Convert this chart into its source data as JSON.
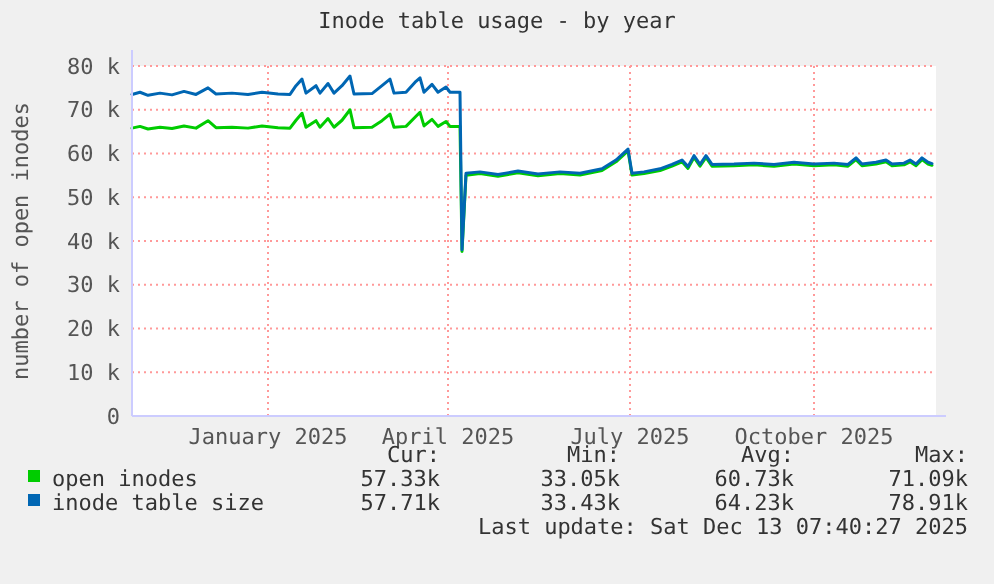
{
  "chart_data": {
    "type": "line",
    "title": "Inode table usage - by year",
    "ylabel": "number of open inodes",
    "x": [
      "2024-11-08",
      "2024-11-12",
      "2024-11-16",
      "2024-11-22",
      "2024-11-28",
      "2024-12-04",
      "2024-12-10",
      "2024-12-16",
      "2024-12-20",
      "2024-12-28",
      "2025-01-05",
      "2025-01-12",
      "2025-01-20",
      "2025-01-26",
      "2025-01-29",
      "2025-02-01",
      "2025-02-03",
      "2025-02-08",
      "2025-02-10",
      "2025-02-14",
      "2025-02-17",
      "2025-02-21",
      "2025-02-25",
      "2025-02-27",
      "2025-03-08",
      "2025-03-13",
      "2025-03-17",
      "2025-03-19",
      "2025-03-25",
      "2025-03-30",
      "2025-04-01",
      "2025-04-03",
      "2025-04-07",
      "2025-04-10",
      "2025-04-14",
      "2025-04-16",
      "2025-04-21",
      "2025-04-22",
      "2025-04-24",
      "2025-05-01",
      "2025-05-10",
      "2025-05-20",
      "2025-05-30",
      "2025-06-10",
      "2025-06-20",
      "2025-07-01",
      "2025-07-08",
      "2025-07-14",
      "2025-07-16",
      "2025-07-22",
      "2025-07-30",
      "2025-08-05",
      "2025-08-10",
      "2025-08-13",
      "2025-08-16",
      "2025-08-19",
      "2025-08-22",
      "2025-08-25",
      "2025-09-05",
      "2025-09-15",
      "2025-09-25",
      "2025-10-05",
      "2025-10-15",
      "2025-10-25",
      "2025-11-01",
      "2025-11-05",
      "2025-11-08",
      "2025-11-15",
      "2025-11-20",
      "2025-11-23",
      "2025-11-29",
      "2025-12-02",
      "2025-12-05",
      "2025-12-08",
      "2025-12-11",
      "2025-12-13"
    ],
    "series": [
      {
        "name": "open inodes",
        "color": "#00cc00",
        "values": [
          65.8,
          66.2,
          65.6,
          66.0,
          65.7,
          66.3,
          65.8,
          67.5,
          65.9,
          66.0,
          65.8,
          66.3,
          65.9,
          65.8,
          67.6,
          69.2,
          66.0,
          67.5,
          66.0,
          68.0,
          66.0,
          67.6,
          70.0,
          65.9,
          66.0,
          67.5,
          69.0,
          66.0,
          66.2,
          68.5,
          69.4,
          66.3,
          67.8,
          66.2,
          67.3,
          66.2,
          66.2,
          37.6,
          55.0,
          55.4,
          54.8,
          55.6,
          54.9,
          55.4,
          55.1,
          56.1,
          58.1,
          60.6,
          55.1,
          55.4,
          56.1,
          57.1,
          58.1,
          56.6,
          59.1,
          57.1,
          59.1,
          57.1,
          57.2,
          57.4,
          57.1,
          57.6,
          57.2,
          57.4,
          57.1,
          58.6,
          57.2,
          57.6,
          58.1,
          57.2,
          57.4,
          58.1,
          57.2,
          58.6,
          57.6,
          57.3
        ]
      },
      {
        "name": "inode table size",
        "color": "#0066b3",
        "values": [
          73.5,
          74.0,
          73.3,
          73.8,
          73.4,
          74.2,
          73.5,
          75.0,
          73.6,
          73.8,
          73.5,
          74.0,
          73.6,
          73.5,
          75.5,
          77.0,
          73.8,
          75.5,
          73.8,
          76.0,
          73.8,
          75.5,
          77.7,
          73.6,
          73.7,
          75.5,
          77.0,
          73.8,
          74.0,
          76.5,
          77.3,
          74.0,
          75.8,
          74.0,
          75.2,
          74.0,
          74.0,
          38.0,
          55.5,
          55.8,
          55.2,
          56.0,
          55.3,
          55.8,
          55.5,
          56.5,
          58.5,
          61.0,
          55.5,
          55.8,
          56.5,
          57.5,
          58.5,
          57.0,
          59.5,
          57.5,
          59.5,
          57.5,
          57.6,
          57.8,
          57.5,
          58.0,
          57.6,
          57.8,
          57.5,
          59.0,
          57.6,
          58.0,
          58.5,
          57.6,
          57.8,
          58.5,
          57.6,
          59.0,
          58.0,
          57.7
        ]
      }
    ],
    "xlim": [
      "2024-11-08",
      "2025-12-15"
    ],
    "xticks": [
      {
        "value": "2025-01-15",
        "label": "January 2025"
      },
      {
        "value": "2025-04-15",
        "label": "April 2025"
      },
      {
        "value": "2025-07-15",
        "label": "July 2025"
      },
      {
        "value": "2025-10-15",
        "label": "October 2025"
      }
    ],
    "ylim": [
      0,
      80
    ],
    "yticks": [
      {
        "value": 0,
        "label": "0"
      },
      {
        "value": 10,
        "label": "10 k"
      },
      {
        "value": 20,
        "label": "20 k"
      },
      {
        "value": 30,
        "label": "30 k"
      },
      {
        "value": 40,
        "label": "40 k"
      },
      {
        "value": 50,
        "label": "50 k"
      },
      {
        "value": 60,
        "label": "60 k"
      },
      {
        "value": 70,
        "label": "70 k"
      },
      {
        "value": 80,
        "label": "80 k"
      }
    ],
    "grid": true,
    "legend": "bottom",
    "annotations": [
      "Cur:",
      "Min:",
      "Avg:",
      "Max:",
      "57.33k",
      "33.05k",
      "60.73k",
      "71.09k",
      "57.71k",
      "33.43k",
      "64.23k",
      "78.91k",
      "Last update: Sat Dec 13 07:40:27 2025"
    ]
  }
}
